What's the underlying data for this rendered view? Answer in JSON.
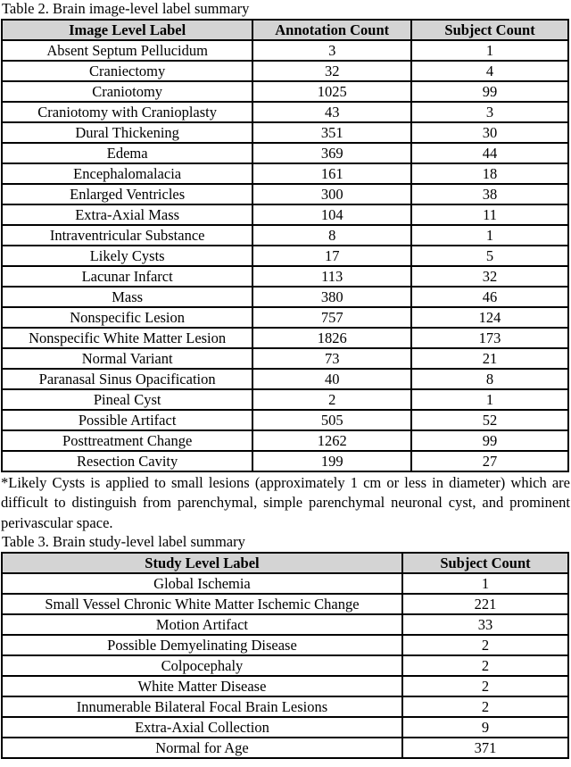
{
  "table2": {
    "caption": "Table 2. Brain image-level label summary",
    "headers": [
      "Image Level Label",
      "Annotation Count",
      "Subject Count"
    ],
    "rows": [
      [
        "Absent Septum Pellucidum",
        "3",
        "1"
      ],
      [
        "Craniectomy",
        "32",
        "4"
      ],
      [
        "Craniotomy",
        "1025",
        "99"
      ],
      [
        "Craniotomy with Cranioplasty",
        "43",
        "3"
      ],
      [
        "Dural Thickening",
        "351",
        "30"
      ],
      [
        "Edema",
        "369",
        "44"
      ],
      [
        "Encephalomalacia",
        "161",
        "18"
      ],
      [
        "Enlarged Ventricles",
        "300",
        "38"
      ],
      [
        "Extra-Axial Mass",
        "104",
        "11"
      ],
      [
        "Intraventricular Substance",
        "8",
        "1"
      ],
      [
        "Likely Cysts",
        "17",
        "5"
      ],
      [
        "Lacunar Infarct",
        "113",
        "32"
      ],
      [
        "Mass",
        "380",
        "46"
      ],
      [
        "Nonspecific Lesion",
        "757",
        "124"
      ],
      [
        "Nonspecific White Matter Lesion",
        "1826",
        "173"
      ],
      [
        "Normal Variant",
        "73",
        "21"
      ],
      [
        "Paranasal Sinus Opacification",
        "40",
        "8"
      ],
      [
        "Pineal Cyst",
        "2",
        "1"
      ],
      [
        "Possible Artifact",
        "505",
        "52"
      ],
      [
        "Posttreatment Change",
        "1262",
        "99"
      ],
      [
        "Resection Cavity",
        "199",
        "27"
      ]
    ]
  },
  "footnote": "*Likely Cysts is applied to small lesions (approximately 1 cm or less in diameter) which are difficult to distinguish from parenchymal, simple parenchymal neuronal cyst, and prominent perivascular space.",
  "table3": {
    "caption": "Table 3. Brain study-level label summary",
    "headers": [
      "Study Level Label",
      "Subject Count"
    ],
    "rows": [
      [
        "Global Ischemia",
        "1"
      ],
      [
        "Small Vessel Chronic White Matter Ischemic Change",
        "221"
      ],
      [
        "Motion Artifact",
        "33"
      ],
      [
        "Possible Demyelinating Disease",
        "2"
      ],
      [
        "Colpocephaly",
        "2"
      ],
      [
        "White Matter Disease",
        "2"
      ],
      [
        "Innumerable Bilateral Focal Brain Lesions",
        "2"
      ],
      [
        "Extra-Axial Collection",
        "9"
      ],
      [
        "Normal for Age",
        "371"
      ]
    ]
  },
  "colors": {
    "header_bg": "#d4d4d4",
    "border": "#000000",
    "text": "#000000",
    "page_bg": "#ffffff"
  }
}
